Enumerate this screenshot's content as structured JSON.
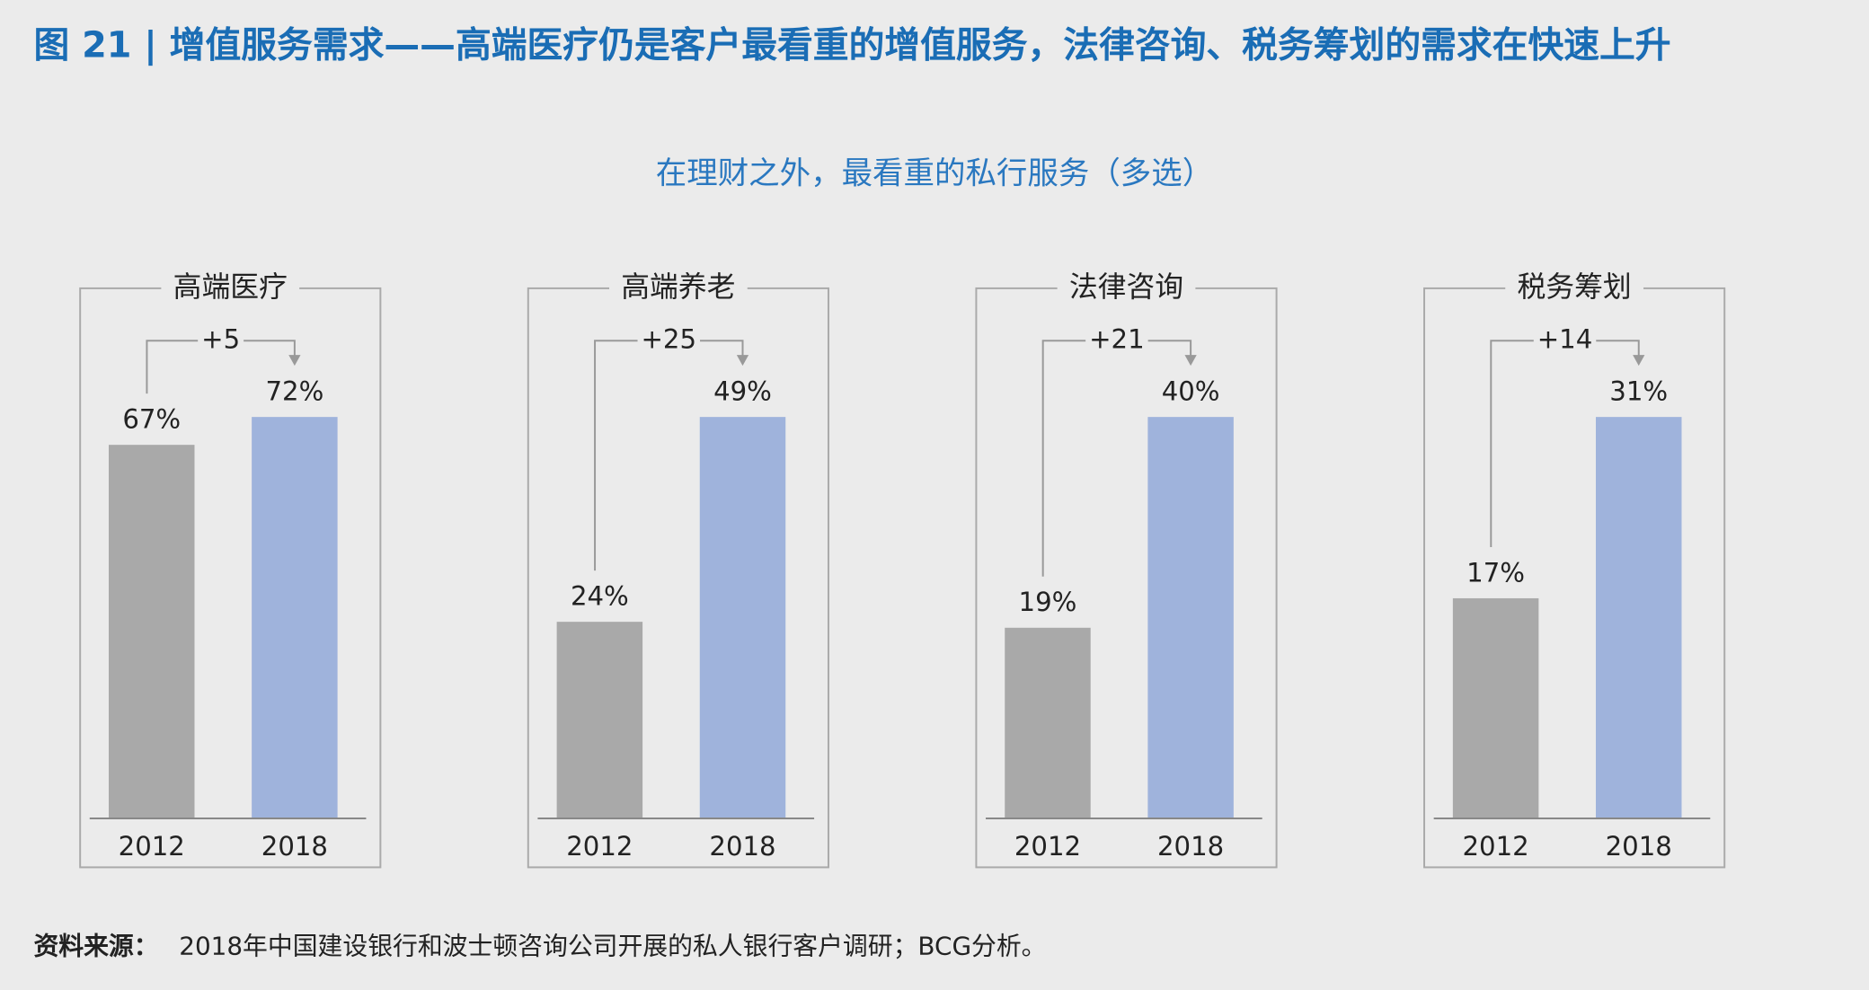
{
  "title": "图 21 | 增值服务需求——高端医疗仍是客户最看重的增值服务，法律咨询、税务筹划的需求在快速上升",
  "subtitle": "在理财之外，最看重的私行服务（多选）",
  "source_label": "资料来源：",
  "source": "2018年中国建设银行和波士顿咨询公司开展的私人银行客户调研；BCG分析。",
  "chart_data": [
    {
      "type": "bar",
      "title": "高端医疗",
      "categories": [
        "2012",
        "2018"
      ],
      "values": [
        67,
        72
      ],
      "value_labels": [
        "67%",
        "72%"
      ],
      "colors": [
        "#a9a9a9",
        "#9fb3dc"
      ],
      "ylim": [
        0,
        72
      ],
      "change": "+5"
    },
    {
      "type": "bar",
      "title": "高端养老",
      "categories": [
        "2012",
        "2018"
      ],
      "values": [
        24,
        49
      ],
      "value_labels": [
        "24%",
        "49%"
      ],
      "colors": [
        "#a9a9a9",
        "#9fb3dc"
      ],
      "ylim": [
        0,
        49
      ],
      "change": "+25"
    },
    {
      "type": "bar",
      "title": "法律咨询",
      "categories": [
        "2012",
        "2018"
      ],
      "values": [
        19,
        40
      ],
      "value_labels": [
        "19%",
        "40%"
      ],
      "colors": [
        "#a9a9a9",
        "#9fb3dc"
      ],
      "ylim": [
        0,
        40
      ],
      "change": "+21"
    },
    {
      "type": "bar",
      "title": "税务筹划",
      "categories": [
        "2012",
        "2018"
      ],
      "values": [
        17,
        31
      ],
      "value_labels": [
        "17%",
        "31%"
      ],
      "colors": [
        "#a9a9a9",
        "#9fb3dc"
      ],
      "ylim": [
        0,
        31
      ],
      "change": "+14"
    }
  ]
}
